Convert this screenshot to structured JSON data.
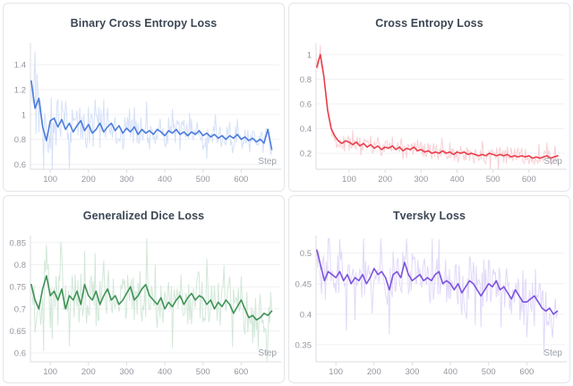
{
  "page": {
    "background": "#ffffff",
    "layout": "2x2 loss curve panels, wandb-style"
  },
  "chart_data": [
    {
      "type": "line",
      "title": "Binary Cross Entropy Loss",
      "xlabel": "Step",
      "legend": "none",
      "grid": "horizontal",
      "color": "#4b7cdb",
      "raw_color": "#ccd9f6",
      "xlim": [
        48,
        700
      ],
      "ylim": [
        0.56,
        1.56
      ],
      "xticks": [
        100,
        200,
        300,
        400,
        500,
        600
      ],
      "yticks": [
        0.6,
        0.8,
        1,
        1.2,
        1.4
      ],
      "x_start": 50,
      "x_step": 10,
      "raw_noise": {
        "start": 0.26,
        "end": 0.09
      },
      "values": [
        1.27,
        1.05,
        1.13,
        0.9,
        0.79,
        0.95,
        0.97,
        0.9,
        0.96,
        0.88,
        0.93,
        0.86,
        0.91,
        0.95,
        0.87,
        0.92,
        0.85,
        0.88,
        0.93,
        0.86,
        0.9,
        0.93,
        0.87,
        0.91,
        0.85,
        0.89,
        0.86,
        0.9,
        0.84,
        0.88,
        0.85,
        0.87,
        0.84,
        0.88,
        0.86,
        0.83,
        0.87,
        0.85,
        0.88,
        0.84,
        0.86,
        0.83,
        0.86,
        0.84,
        0.87,
        0.83,
        0.85,
        0.82,
        0.84,
        0.81,
        0.83,
        0.8,
        0.83,
        0.81,
        0.84,
        0.8,
        0.82,
        0.79,
        0.81,
        0.78,
        0.8,
        0.77,
        0.88,
        0.72
      ]
    },
    {
      "type": "line",
      "title": "Cross Entropy Loss",
      "xlabel": "Step",
      "legend": "none",
      "grid": "horizontal",
      "color": "#ea3e4b",
      "raw_color": "#f6c6ca",
      "xlim": [
        8,
        700
      ],
      "ylim": [
        0.07,
        1.08
      ],
      "xticks": [
        100,
        200,
        300,
        400,
        500,
        600
      ],
      "yticks": [
        0.2,
        0.4,
        0.6,
        0.8,
        1
      ],
      "x_start": 10,
      "x_step": 10,
      "raw_noise": {
        "start": 0.05,
        "end": 0.06
      },
      "values": [
        0.9,
        1.0,
        0.82,
        0.55,
        0.4,
        0.34,
        0.3,
        0.28,
        0.3,
        0.29,
        0.27,
        0.29,
        0.26,
        0.28,
        0.25,
        0.27,
        0.24,
        0.26,
        0.23,
        0.25,
        0.24,
        0.26,
        0.23,
        0.25,
        0.22,
        0.24,
        0.23,
        0.25,
        0.22,
        0.23,
        0.21,
        0.22,
        0.2,
        0.21,
        0.2,
        0.22,
        0.2,
        0.21,
        0.19,
        0.21,
        0.2,
        0.21,
        0.19,
        0.2,
        0.19,
        0.18,
        0.19,
        0.18,
        0.2,
        0.19,
        0.18,
        0.19,
        0.18,
        0.19,
        0.17,
        0.18,
        0.17,
        0.18,
        0.17,
        0.18,
        0.16,
        0.17,
        0.16,
        0.17,
        0.18,
        0.16,
        0.17,
        0.18
      ]
    },
    {
      "type": "line",
      "title": "Generalized Dice Loss",
      "xlabel": "Step",
      "legend": "none",
      "grid": "horizontal",
      "color": "#3f9256",
      "raw_color": "#c8e2cf",
      "xlim": [
        48,
        700
      ],
      "ylim": [
        0.58,
        0.862
      ],
      "xticks": [
        100,
        200,
        300,
        400,
        500,
        600
      ],
      "yticks": [
        0.6,
        0.65,
        0.7,
        0.75,
        0.8,
        0.85
      ],
      "x_start": 50,
      "x_step": 10,
      "raw_noise": {
        "start": 0.07,
        "end": 0.05
      },
      "values": [
        0.755,
        0.72,
        0.7,
        0.745,
        0.775,
        0.73,
        0.74,
        0.72,
        0.745,
        0.7,
        0.73,
        0.72,
        0.74,
        0.71,
        0.755,
        0.73,
        0.72,
        0.74,
        0.71,
        0.73,
        0.745,
        0.72,
        0.73,
        0.71,
        0.72,
        0.735,
        0.75,
        0.72,
        0.73,
        0.745,
        0.755,
        0.73,
        0.72,
        0.71,
        0.725,
        0.7,
        0.715,
        0.705,
        0.72,
        0.73,
        0.71,
        0.725,
        0.735,
        0.72,
        0.73,
        0.725,
        0.71,
        0.72,
        0.7,
        0.715,
        0.705,
        0.72,
        0.71,
        0.69,
        0.705,
        0.72,
        0.7,
        0.68,
        0.685,
        0.675,
        0.68,
        0.69,
        0.685,
        0.695
      ]
    },
    {
      "type": "line",
      "title": "Tversky Loss",
      "xlabel": "Step",
      "legend": "none",
      "grid": "horizontal",
      "color": "#7d53dd",
      "raw_color": "#d9cff6",
      "xlim": [
        48,
        700
      ],
      "ylim": [
        0.322,
        0.526
      ],
      "xticks": [
        100,
        200,
        300,
        400,
        500,
        600
      ],
      "yticks": [
        0.35,
        0.4,
        0.45,
        0.5
      ],
      "x_start": 50,
      "x_step": 10,
      "raw_noise": {
        "start": 0.045,
        "end": 0.038
      },
      "values": [
        0.505,
        0.48,
        0.455,
        0.47,
        0.465,
        0.46,
        0.47,
        0.455,
        0.465,
        0.45,
        0.46,
        0.455,
        0.465,
        0.45,
        0.46,
        0.475,
        0.465,
        0.47,
        0.46,
        0.44,
        0.465,
        0.47,
        0.46,
        0.485,
        0.465,
        0.455,
        0.46,
        0.465,
        0.455,
        0.46,
        0.455,
        0.465,
        0.47,
        0.45,
        0.455,
        0.45,
        0.44,
        0.45,
        0.435,
        0.445,
        0.455,
        0.45,
        0.44,
        0.43,
        0.44,
        0.45,
        0.445,
        0.455,
        0.44,
        0.445,
        0.435,
        0.425,
        0.44,
        0.43,
        0.42,
        0.42,
        0.425,
        0.43,
        0.42,
        0.41,
        0.405,
        0.41,
        0.4,
        0.405
      ]
    }
  ]
}
